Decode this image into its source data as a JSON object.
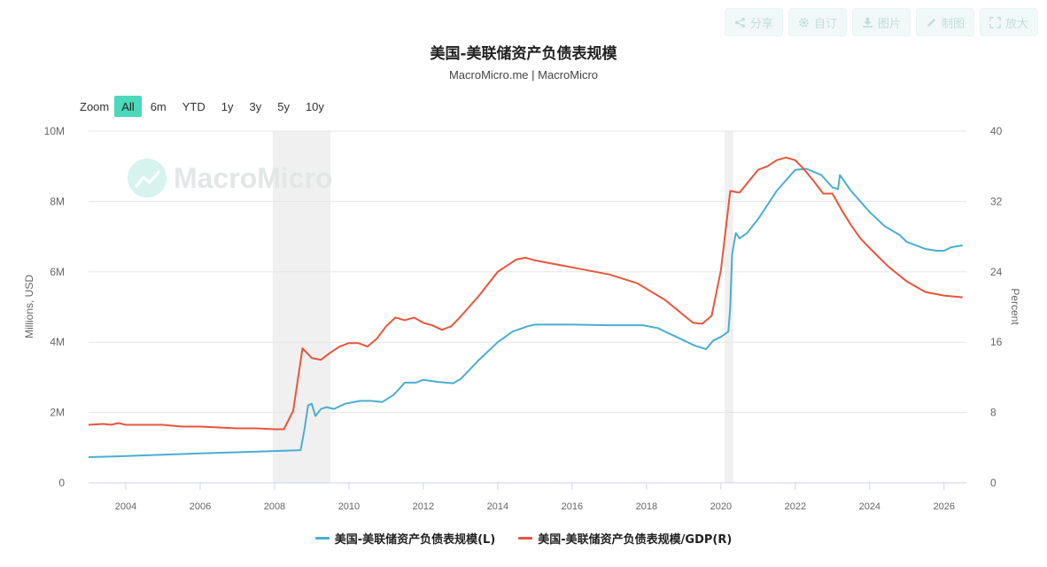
{
  "toolbar": {
    "share_label": "分享",
    "subscribe_label": "自订",
    "image_label": "图片",
    "draw_label": "制图",
    "expand_label": "放大"
  },
  "header": {
    "title": "美国-美联储资产负债表规模",
    "subtitle": "MacroMicro.me | MacroMicro"
  },
  "watermark": "MacroMicro",
  "zoom": {
    "label": "Zoom",
    "options": [
      "All",
      "6m",
      "YTD",
      "1y",
      "3y",
      "5y",
      "10y"
    ],
    "selected": "All"
  },
  "chart_data": {
    "type": "line",
    "title": "美国-美联储资产负债表规模",
    "subtitle": "MacroMicro.me | MacroMicro",
    "xlim": [
      2003.0,
      2026.6
    ],
    "x_ticks": [
      2004,
      2006,
      2008,
      2010,
      2012,
      2014,
      2016,
      2018,
      2020,
      2022,
      2024,
      2026
    ],
    "left_axis": {
      "label": "Millions, USD",
      "ylim": [
        0,
        10000000
      ],
      "ticks": [
        "0",
        "2M",
        "4M",
        "6M",
        "8M",
        "10M"
      ]
    },
    "right_axis": {
      "label": "Percent",
      "ylim": [
        0,
        40
      ],
      "ticks": [
        "0",
        "8",
        "16",
        "24",
        "32",
        "40"
      ]
    },
    "grid": true,
    "recessions": [
      [
        2007.95,
        2009.5
      ],
      [
        2020.1,
        2020.33
      ]
    ],
    "series": [
      {
        "name": "美国-美联储资产负债表规模(L)",
        "axis": "left",
        "color": "#4aaed1",
        "x": [
          2003.0,
          2004.0,
          2005.0,
          2006.0,
          2007.0,
          2007.9,
          2008.7,
          2008.8,
          2008.9,
          2009.0,
          2009.1,
          2009.25,
          2009.4,
          2009.6,
          2009.9,
          2010.3,
          2010.6,
          2010.9,
          2011.2,
          2011.5,
          2011.8,
          2012.0,
          2012.4,
          2012.8,
          2013.0,
          2013.5,
          2014.0,
          2014.4,
          2014.8,
          2015.0,
          2016.0,
          2017.0,
          2017.9,
          2018.3,
          2018.8,
          2019.3,
          2019.6,
          2019.8,
          2020.0,
          2020.2,
          2020.25,
          2020.3,
          2020.4,
          2020.5,
          2020.7,
          2021.0,
          2021.5,
          2022.0,
          2022.3,
          2022.7,
          2023.0,
          2023.15,
          2023.2,
          2023.5,
          2024.0,
          2024.4,
          2024.8,
          2025.0,
          2025.5,
          2025.8,
          2026.0,
          2026.2,
          2026.5
        ],
        "values": [
          730000,
          760000,
          800000,
          840000,
          870000,
          900000,
          930000,
          1500000,
          2200000,
          2250000,
          1900000,
          2100000,
          2150000,
          2100000,
          2250000,
          2330000,
          2330000,
          2300000,
          2500000,
          2850000,
          2850000,
          2930000,
          2870000,
          2830000,
          2950000,
          3500000,
          4000000,
          4300000,
          4450000,
          4500000,
          4500000,
          4480000,
          4480000,
          4400000,
          4150000,
          3900000,
          3800000,
          4050000,
          4150000,
          4300000,
          5000000,
          6500000,
          7100000,
          6950000,
          7100000,
          7500000,
          8300000,
          8900000,
          8930000,
          8750000,
          8400000,
          8350000,
          8750000,
          8300000,
          7700000,
          7300000,
          7050000,
          6850000,
          6650000,
          6600000,
          6600000,
          6700000,
          6750000
        ]
      },
      {
        "name": "美国-美联储资产负债表规模/GDP(R)",
        "axis": "right",
        "color": "#e8553d",
        "x": [
          2003.0,
          2003.4,
          2003.6,
          2003.8,
          2004.0,
          2005.0,
          2005.5,
          2006.0,
          2007.0,
          2007.5,
          2008.0,
          2008.25,
          2008.5,
          2008.75,
          2009.0,
          2009.25,
          2009.5,
          2009.75,
          2010.0,
          2010.25,
          2010.5,
          2010.75,
          2011.0,
          2011.25,
          2011.5,
          2011.75,
          2012.0,
          2012.25,
          2012.5,
          2012.75,
          2013.0,
          2013.5,
          2014.0,
          2014.5,
          2014.75,
          2015.0,
          2016.0,
          2017.0,
          2017.75,
          2018.5,
          2019.25,
          2019.5,
          2019.75,
          2020.0,
          2020.25,
          2020.5,
          2020.75,
          2021.0,
          2021.25,
          2021.5,
          2021.75,
          2022.0,
          2022.25,
          2022.5,
          2022.75,
          2023.0,
          2023.25,
          2023.5,
          2023.75,
          2024.0,
          2024.5,
          2025.0,
          2025.5,
          2026.0,
          2026.5
        ],
        "values": [
          6.6,
          6.7,
          6.6,
          6.8,
          6.6,
          6.6,
          6.4,
          6.4,
          6.2,
          6.2,
          6.1,
          6.1,
          8.2,
          15.3,
          14.2,
          14.0,
          14.8,
          15.5,
          15.9,
          15.9,
          15.5,
          16.4,
          17.8,
          18.8,
          18.5,
          18.8,
          18.2,
          17.9,
          17.4,
          17.8,
          18.9,
          21.3,
          24.0,
          25.4,
          25.6,
          25.3,
          24.5,
          23.7,
          22.7,
          20.8,
          18.2,
          18.1,
          19.0,
          24.2,
          33.2,
          33.0,
          34.3,
          35.6,
          36.0,
          36.7,
          37.0,
          36.7,
          35.6,
          34.3,
          32.9,
          32.9,
          31.0,
          29.3,
          27.8,
          26.7,
          24.6,
          22.9,
          21.7,
          21.3,
          21.1
        ]
      }
    ]
  }
}
